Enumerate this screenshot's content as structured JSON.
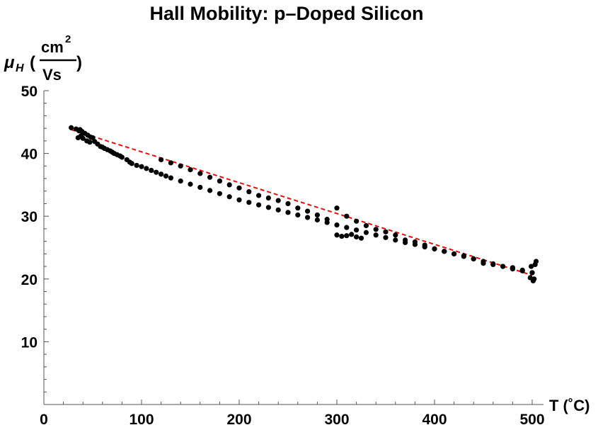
{
  "chart_data": {
    "type": "scatter",
    "title": "Hall Mobility: p–Doped Silicon",
    "xlabel": "T (˚C)",
    "ylabel": {
      "symbol": "μ",
      "subscript": "H",
      "open_paren": "(",
      "numerator": "cm",
      "numerator_exp": "2",
      "denominator": "Vs",
      "close_paren": ")"
    },
    "xlim": [
      0,
      510
    ],
    "ylim": [
      0,
      50
    ],
    "xticks": [
      0,
      100,
      200,
      300,
      400,
      500
    ],
    "yticks": [
      10,
      20,
      30,
      40,
      50
    ],
    "grid": false,
    "colors": {
      "points": "#000000",
      "fit": "#e01010",
      "axes": "#555555"
    },
    "series": [
      {
        "kind": "points",
        "x": [
          28,
          33,
          36,
          38,
          40,
          35,
          37,
          39,
          42,
          45,
          48,
          50,
          44,
          47,
          52,
          55,
          58,
          60,
          62,
          65,
          68,
          70,
          72,
          75,
          78,
          80,
          85,
          88,
          90,
          95,
          100,
          105,
          110,
          115,
          120,
          125,
          130,
          140,
          150,
          160,
          170,
          180,
          190,
          200,
          210,
          220,
          230,
          240,
          250,
          260,
          270,
          280,
          290,
          300,
          310,
          320,
          330,
          340,
          350,
          360,
          370,
          380,
          390,
          400,
          410,
          420,
          430,
          440,
          450,
          460,
          470,
          480,
          490,
          500,
          120,
          130,
          140,
          150,
          160,
          170,
          180,
          190,
          200,
          210,
          220,
          230,
          240,
          250,
          260,
          270,
          280,
          290,
          300,
          310,
          320,
          330,
          340,
          350,
          360,
          370,
          380,
          390,
          400,
          410,
          420,
          430,
          440,
          450,
          460,
          470,
          480,
          490,
          500,
          498,
          502,
          501,
          503,
          504,
          499,
          300,
          305,
          310,
          315,
          320,
          325
        ],
        "y": [
          44.1,
          43.9,
          43.6,
          42.8,
          42.4,
          42.5,
          43.8,
          43.5,
          43.2,
          42.9,
          42.6,
          42.5,
          42.0,
          41.8,
          41.9,
          41.5,
          41.1,
          41.0,
          40.8,
          40.6,
          40.4,
          40.2,
          40.0,
          39.8,
          39.6,
          39.4,
          39.0,
          38.6,
          38.4,
          38.1,
          37.9,
          37.6,
          37.3,
          37.0,
          36.7,
          36.4,
          36.1,
          35.6,
          35.1,
          34.6,
          34.1,
          33.6,
          33.1,
          32.6,
          32.2,
          31.8,
          31.4,
          31.0,
          30.6,
          30.2,
          29.8,
          29.4,
          29.0,
          28.6,
          28.2,
          27.8,
          27.4,
          27.0,
          26.6,
          26.2,
          25.8,
          25.5,
          25.1,
          24.8,
          24.4,
          24.0,
          23.6,
          23.2,
          22.8,
          22.4,
          22.0,
          21.6,
          21.3,
          21.0,
          39.0,
          38.5,
          38.0,
          37.4,
          36.8,
          36.2,
          35.6,
          35.0,
          34.5,
          33.9,
          33.3,
          32.9,
          32.5,
          32.0,
          31.3,
          30.8,
          30.2,
          29.5,
          31.3,
          30.0,
          29.2,
          28.5,
          27.9,
          27.5,
          27.0,
          26.2,
          25.9,
          25.4,
          24.8,
          24.4,
          24.0,
          23.7,
          23.2,
          22.5,
          22.3,
          22.0,
          21.8,
          21.4,
          21.0,
          20.2,
          20.0,
          19.7,
          22.3,
          22.8,
          22.0,
          27.0,
          26.8,
          26.9,
          27.1,
          26.7,
          26.5
        ]
      },
      {
        "kind": "fit",
        "x": [
          28,
          500
        ],
        "y": [
          43.8,
          20.6
        ]
      }
    ]
  }
}
